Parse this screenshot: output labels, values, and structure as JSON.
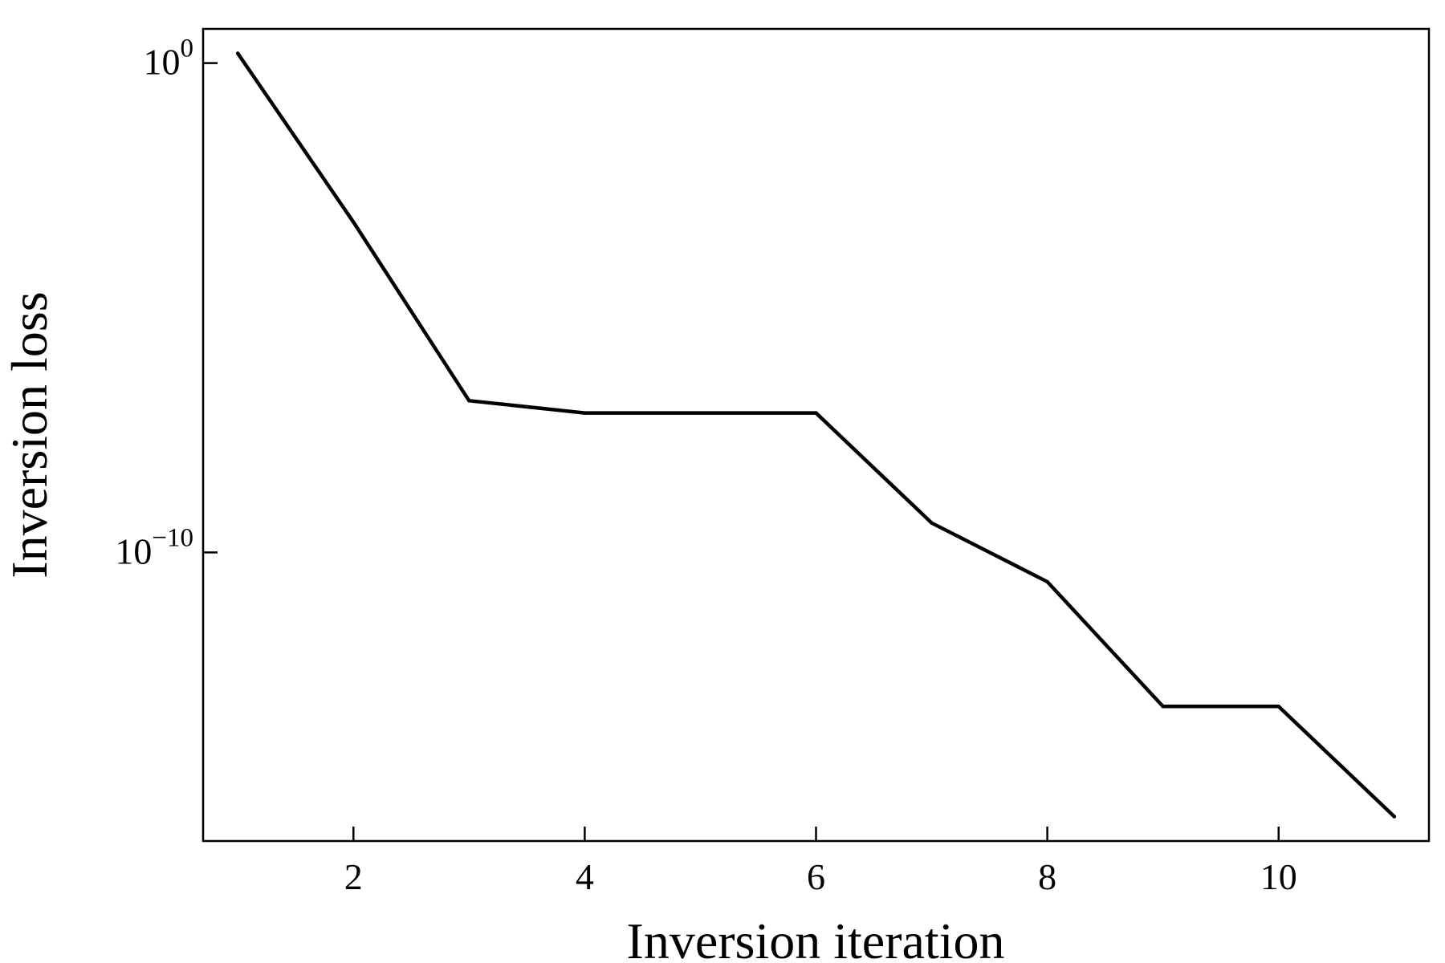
{
  "chart_data": {
    "type": "line",
    "title": "",
    "xlabel": "Inversion iteration",
    "ylabel": "Inversion loss",
    "yscale": "log",
    "grid": false,
    "legend": "none",
    "xlim": [
      0.7,
      11.3
    ],
    "ylim_log10": [
      -15.9,
      0.7
    ],
    "x_ticks": [
      {
        "value": 2,
        "label": "2"
      },
      {
        "value": 4,
        "label": "4"
      },
      {
        "value": 6,
        "label": "6"
      },
      {
        "value": 8,
        "label": "8"
      },
      {
        "value": 10,
        "label": "10"
      }
    ],
    "y_ticks": [
      {
        "exponent": 0,
        "base": "10",
        "sup": "0"
      },
      {
        "exponent": -10,
        "base": "10",
        "sup": "−10"
      }
    ],
    "series": [
      {
        "color": "#000000",
        "x": [
          1,
          2,
          3,
          4,
          5,
          6,
          7,
          8,
          9,
          10,
          11
        ],
        "y_log10": [
          0.2,
          -3.25,
          -6.9,
          -7.15,
          -7.15,
          -7.15,
          -9.4,
          -10.6,
          -13.15,
          -13.15,
          -15.4
        ]
      }
    ]
  }
}
